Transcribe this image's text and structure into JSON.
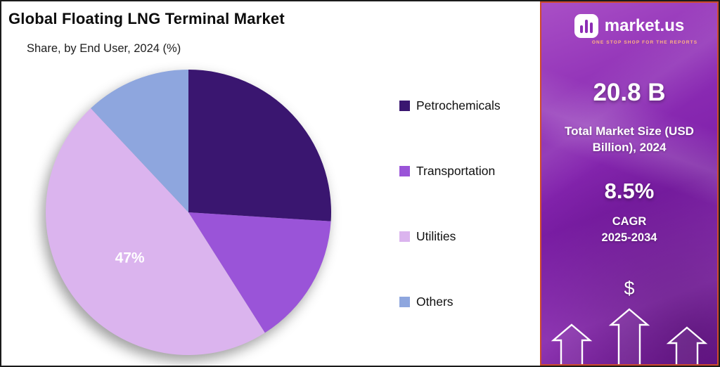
{
  "chart_data": {
    "type": "pie",
    "title": "Global Floating LNG Terminal Market",
    "subtitle": "Share, by End User, 2024 (%)",
    "labels": [
      "Petrochemicals",
      "Transportation",
      "Utilities",
      "Others"
    ],
    "values": [
      26,
      15,
      47,
      12
    ],
    "colors": [
      "#3a1670",
      "#9a54d8",
      "#dbb4ee",
      "#8ea6de"
    ],
    "start_angle_deg": -90,
    "direction": "clockwise",
    "legend_position": "right",
    "annotation": {
      "slice_index": 2,
      "label": "47%"
    }
  },
  "brand_panel": {
    "logo_text": "market.us",
    "tagline": "ONE STOP SHOP FOR THE REPORTS",
    "market_size_value": "20.8 B",
    "market_size_label": "Total Market Size (USD Billion), 2024",
    "cagr_value": "8.5%",
    "cagr_label": "CAGR",
    "cagr_period": "2025-2034",
    "dollar_symbol": "$"
  }
}
